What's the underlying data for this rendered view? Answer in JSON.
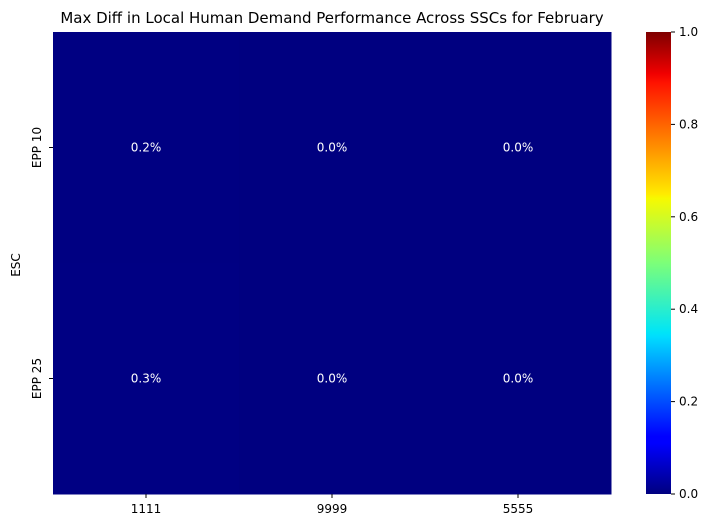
{
  "chart_data": {
    "type": "heatmap",
    "title": "Max Diff in Local Human Demand Performance Across SSCs for February",
    "xlabel": "",
    "ylabel": "ESC",
    "x_categories": [
      "1111",
      "9999",
      "5555"
    ],
    "y_categories": [
      "EPP 10",
      "EPP 25"
    ],
    "values": [
      [
        0.002,
        0.0,
        0.0
      ],
      [
        0.003,
        0.0,
        0.0
      ]
    ],
    "cell_labels": [
      [
        "0.2%",
        "0.0%",
        "0.0%"
      ],
      [
        "0.3%",
        "0.0%",
        "0.0%"
      ]
    ],
    "colormap": "jet",
    "vmin": 0.0,
    "vmax": 1.0,
    "colorbar_ticks": [
      "0.0",
      "0.2",
      "0.4",
      "0.6",
      "0.8",
      "1.0"
    ],
    "colorbar_tick_values": [
      0.0,
      0.2,
      0.4,
      0.6,
      0.8,
      1.0
    ]
  }
}
